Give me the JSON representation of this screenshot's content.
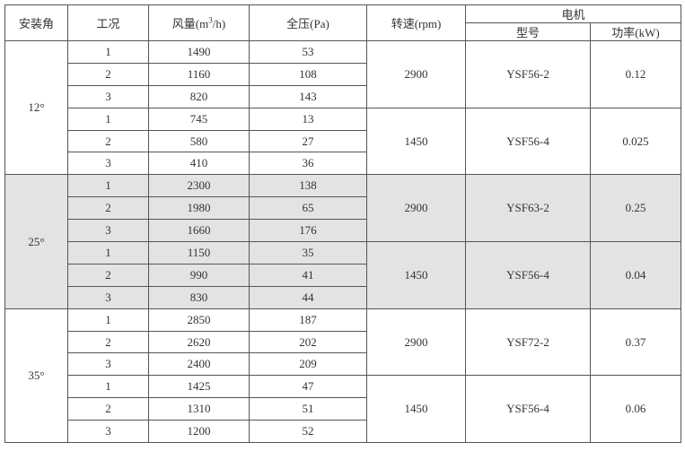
{
  "header": {
    "angle": "安装角",
    "condition": "工况",
    "airflow_prefix": "风量(m",
    "airflow_sup": "3",
    "airflow_suffix": "/h)",
    "pressure": "全压(Pa)",
    "speed": "转速(rpm)",
    "motor": "电机",
    "model": "型号",
    "power": "功率(kW)"
  },
  "groups": [
    {
      "angle": "12°",
      "shaded": false,
      "subgroups": [
        {
          "rpm": "2900",
          "model": "YSF56-2",
          "power": "0.12",
          "rows": [
            [
              "1",
              "1490",
              "53"
            ],
            [
              "2",
              "1160",
              "108"
            ],
            [
              "3",
              "820",
              "143"
            ]
          ]
        },
        {
          "rpm": "1450",
          "model": "YSF56-4",
          "power": "0.025",
          "rows": [
            [
              "1",
              "745",
              "13"
            ],
            [
              "2",
              "580",
              "27"
            ],
            [
              "3",
              "410",
              "36"
            ]
          ]
        }
      ]
    },
    {
      "angle": "25°",
      "shaded": true,
      "subgroups": [
        {
          "rpm": "2900",
          "model": "YSF63-2",
          "power": "0.25",
          "rows": [
            [
              "1",
              "2300",
              "138"
            ],
            [
              "2",
              "1980",
              "65"
            ],
            [
              "3",
              "1660",
              "176"
            ]
          ]
        },
        {
          "rpm": "1450",
          "model": "YSF56-4",
          "power": "0.04",
          "rows": [
            [
              "1",
              "1150",
              "35"
            ],
            [
              "2",
              "990",
              "41"
            ],
            [
              "3",
              "830",
              "44"
            ]
          ]
        }
      ]
    },
    {
      "angle": "35°",
      "shaded": false,
      "subgroups": [
        {
          "rpm": "2900",
          "model": "YSF72-2",
          "power": "0.37",
          "rows": [
            [
              "1",
              "2850",
              "187"
            ],
            [
              "2",
              "2620",
              "202"
            ],
            [
              "3",
              "2400",
              "209"
            ]
          ]
        },
        {
          "rpm": "1450",
          "model": "YSF56-4",
          "power": "0.06",
          "rows": [
            [
              "1",
              "1425",
              "47"
            ],
            [
              "2",
              "1310",
              "51"
            ],
            [
              "3",
              "1200",
              "52"
            ]
          ]
        }
      ]
    }
  ]
}
